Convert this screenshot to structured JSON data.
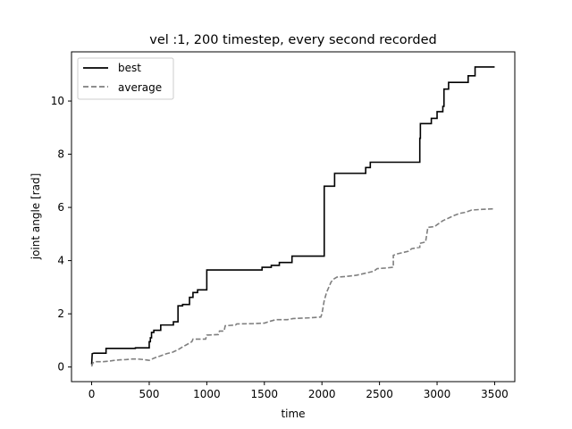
{
  "chart_data": {
    "type": "line",
    "title": "vel :1, 200 timestep, every second recorded",
    "xlabel": "time",
    "ylabel": "joint angle [rad]",
    "xlim": [
      -175,
      3675
    ],
    "ylim": [
      -0.55,
      11.85
    ],
    "xticks": [
      0,
      500,
      1000,
      1500,
      2000,
      2500,
      3000,
      3500
    ],
    "yticks": [
      0,
      2,
      4,
      6,
      8,
      10
    ],
    "legend_position": "upper-left",
    "series": [
      {
        "name": "best",
        "color": "#000000",
        "linestyle": "solid",
        "points": [
          [
            0,
            0.1
          ],
          [
            5,
            0.5
          ],
          [
            20,
            0.52
          ],
          [
            125,
            0.52
          ],
          [
            125,
            0.7
          ],
          [
            380,
            0.7
          ],
          [
            380,
            0.72
          ],
          [
            500,
            0.72
          ],
          [
            500,
            0.95
          ],
          [
            510,
            0.95
          ],
          [
            510,
            1.1
          ],
          [
            520,
            1.1
          ],
          [
            520,
            1.3
          ],
          [
            540,
            1.3
          ],
          [
            540,
            1.38
          ],
          [
            600,
            1.38
          ],
          [
            600,
            1.58
          ],
          [
            710,
            1.58
          ],
          [
            710,
            1.7
          ],
          [
            750,
            1.7
          ],
          [
            750,
            2.3
          ],
          [
            790,
            2.3
          ],
          [
            790,
            2.35
          ],
          [
            850,
            2.35
          ],
          [
            850,
            2.62
          ],
          [
            880,
            2.62
          ],
          [
            880,
            2.8
          ],
          [
            920,
            2.8
          ],
          [
            920,
            2.9
          ],
          [
            1000,
            2.9
          ],
          [
            1000,
            3.65
          ],
          [
            1480,
            3.65
          ],
          [
            1480,
            3.75
          ],
          [
            1560,
            3.75
          ],
          [
            1560,
            3.82
          ],
          [
            1630,
            3.82
          ],
          [
            1630,
            3.93
          ],
          [
            1740,
            3.93
          ],
          [
            1740,
            4.17
          ],
          [
            2020,
            4.17
          ],
          [
            2020,
            6.8
          ],
          [
            2110,
            6.8
          ],
          [
            2110,
            7.28
          ],
          [
            2380,
            7.28
          ],
          [
            2380,
            7.5
          ],
          [
            2420,
            7.5
          ],
          [
            2420,
            7.7
          ],
          [
            2850,
            7.7
          ],
          [
            2850,
            8.6
          ],
          [
            2855,
            8.6
          ],
          [
            2855,
            9.15
          ],
          [
            2950,
            9.15
          ],
          [
            2950,
            9.35
          ],
          [
            3000,
            9.35
          ],
          [
            3000,
            9.6
          ],
          [
            3050,
            9.6
          ],
          [
            3050,
            9.8
          ],
          [
            3060,
            9.8
          ],
          [
            3060,
            10.45
          ],
          [
            3100,
            10.45
          ],
          [
            3100,
            10.7
          ],
          [
            3270,
            10.7
          ],
          [
            3270,
            10.95
          ],
          [
            3330,
            10.95
          ],
          [
            3330,
            11.28
          ],
          [
            3500,
            11.28
          ]
        ]
      },
      {
        "name": "average",
        "color": "#7f7f7f",
        "linestyle": "dashed",
        "points": [
          [
            0,
            0.02
          ],
          [
            10,
            0.15
          ],
          [
            30,
            0.2
          ],
          [
            100,
            0.2
          ],
          [
            150,
            0.22
          ],
          [
            200,
            0.25
          ],
          [
            250,
            0.27
          ],
          [
            300,
            0.28
          ],
          [
            350,
            0.3
          ],
          [
            400,
            0.3
          ],
          [
            450,
            0.28
          ],
          [
            500,
            0.25
          ],
          [
            550,
            0.35
          ],
          [
            600,
            0.42
          ],
          [
            650,
            0.5
          ],
          [
            700,
            0.55
          ],
          [
            750,
            0.65
          ],
          [
            800,
            0.78
          ],
          [
            850,
            0.9
          ],
          [
            870,
            0.95
          ],
          [
            880,
            1.05
          ],
          [
            950,
            1.05
          ],
          [
            990,
            1.05
          ],
          [
            1000,
            1.2
          ],
          [
            1100,
            1.22
          ],
          [
            1110,
            1.35
          ],
          [
            1150,
            1.35
          ],
          [
            1160,
            1.55
          ],
          [
            1250,
            1.58
          ],
          [
            1260,
            1.62
          ],
          [
            1400,
            1.63
          ],
          [
            1500,
            1.65
          ],
          [
            1550,
            1.72
          ],
          [
            1600,
            1.78
          ],
          [
            1700,
            1.78
          ],
          [
            1750,
            1.82
          ],
          [
            1900,
            1.85
          ],
          [
            1990,
            1.88
          ],
          [
            2000,
            2.0
          ],
          [
            2020,
            2.5
          ],
          [
            2040,
            2.8
          ],
          [
            2060,
            3.0
          ],
          [
            2080,
            3.2
          ],
          [
            2100,
            3.3
          ],
          [
            2130,
            3.38
          ],
          [
            2200,
            3.4
          ],
          [
            2300,
            3.45
          ],
          [
            2400,
            3.55
          ],
          [
            2450,
            3.6
          ],
          [
            2480,
            3.7
          ],
          [
            2550,
            3.72
          ],
          [
            2620,
            3.75
          ],
          [
            2620,
            4.2
          ],
          [
            2650,
            4.25
          ],
          [
            2700,
            4.3
          ],
          [
            2750,
            4.35
          ],
          [
            2780,
            4.45
          ],
          [
            2850,
            4.5
          ],
          [
            2850,
            4.65
          ],
          [
            2900,
            4.7
          ],
          [
            2920,
            5.25
          ],
          [
            2980,
            5.28
          ],
          [
            3000,
            5.35
          ],
          [
            3050,
            5.5
          ],
          [
            3100,
            5.6
          ],
          [
            3150,
            5.7
          ],
          [
            3200,
            5.78
          ],
          [
            3250,
            5.82
          ],
          [
            3300,
            5.9
          ],
          [
            3400,
            5.93
          ],
          [
            3500,
            5.95
          ]
        ]
      }
    ]
  }
}
